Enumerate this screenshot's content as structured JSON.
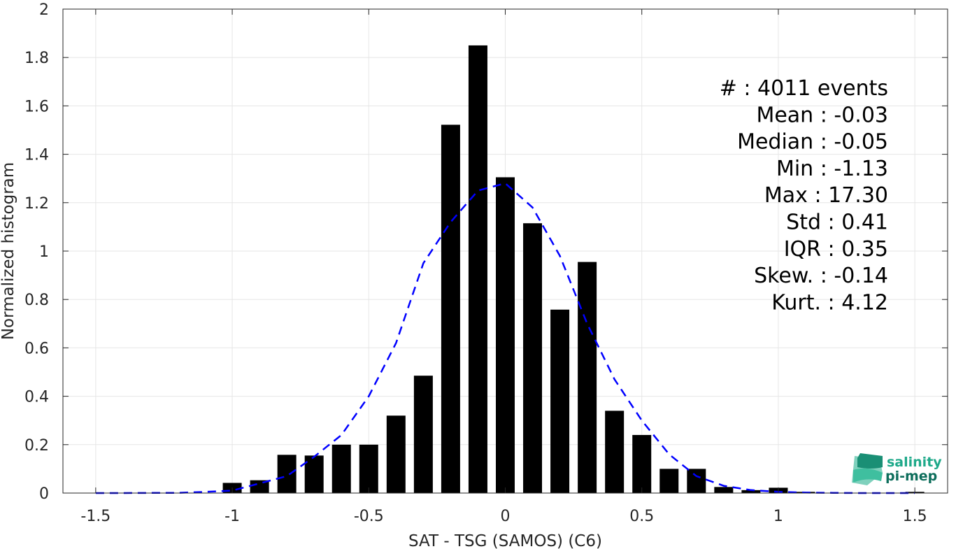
{
  "chart_data": {
    "type": "bar",
    "title": "",
    "xlabel": "SAT - TSG (SAMOS) (C6)",
    "ylabel": "Normalized histogram",
    "xlim": [
      -1.62,
      1.62
    ],
    "ylim": [
      0,
      2
    ],
    "grid": true,
    "x_ticks": [
      "-1.5",
      "-1",
      "-0.5",
      "0",
      "0.5",
      "1",
      "1.5"
    ],
    "y_ticks": [
      "0",
      "0.2",
      "0.4",
      "0.6",
      "0.8",
      "1",
      "1.2",
      "1.4",
      "1.6",
      "1.8",
      "2"
    ],
    "bar_width": 0.07,
    "bar_color": "#000000",
    "bins": {
      "x": [
        -1.5,
        -1.4,
        -1.3,
        -1.2,
        -1.1,
        -1.0,
        -0.9,
        -0.8,
        -0.7,
        -0.6,
        -0.5,
        -0.4,
        -0.3,
        -0.2,
        -0.1,
        0.0,
        0.1,
        0.2,
        0.3,
        0.4,
        0.5,
        0.6,
        0.7,
        0.8,
        0.9,
        1.0,
        1.1,
        1.2,
        1.3,
        1.4,
        1.5
      ],
      "values": [
        0,
        0,
        0,
        0,
        0,
        0.042,
        0.053,
        0.158,
        0.155,
        0.2,
        0.2,
        0.32,
        0.485,
        1.522,
        1.85,
        1.305,
        1.115,
        0.758,
        0.955,
        0.34,
        0.24,
        0.1,
        0.1,
        0.025,
        0.012,
        0.022,
        0.005,
        0,
        0,
        0,
        0.005
      ]
    },
    "fit": {
      "name": "",
      "style": "dashed",
      "color": "#0000ff",
      "x": [
        -1.5,
        -1.4,
        -1.3,
        -1.2,
        -1.1,
        -1.0,
        -0.9,
        -0.8,
        -0.7,
        -0.6,
        -0.5,
        -0.4,
        -0.3,
        -0.2,
        -0.1,
        0.0,
        0.1,
        0.2,
        0.3,
        0.4,
        0.5,
        0.6,
        0.7,
        0.8,
        0.9,
        1.0,
        1.1,
        1.2,
        1.3,
        1.4,
        1.5
      ],
      "y": [
        0.0,
        0.0,
        0.0005,
        0.001,
        0.005,
        0.01,
        0.04,
        0.07,
        0.15,
        0.24,
        0.4,
        0.62,
        0.95,
        1.12,
        1.25,
        1.28,
        1.18,
        0.98,
        0.7,
        0.47,
        0.3,
        0.16,
        0.07,
        0.03,
        0.012,
        0.005,
        0.002,
        0.001,
        0.0,
        0.0,
        0.0
      ]
    },
    "stats": [
      {
        "label": "#  : 4011 events"
      },
      {
        "label": "Mean : -0.03"
      },
      {
        "label": "Median : -0.05"
      },
      {
        "label": "Min : -1.13"
      },
      {
        "label": "Max : 17.30"
      },
      {
        "label": "Std : 0.41"
      },
      {
        "label": "IQR : 0.35"
      },
      {
        "label": "Skew. : -0.14"
      },
      {
        "label": "Kurt. : 4.12"
      }
    ]
  },
  "logo": {
    "line1": "salinity",
    "line2": "pi-mep",
    "color1": "#1fa98a",
    "color2": "#0e6e5c"
  }
}
